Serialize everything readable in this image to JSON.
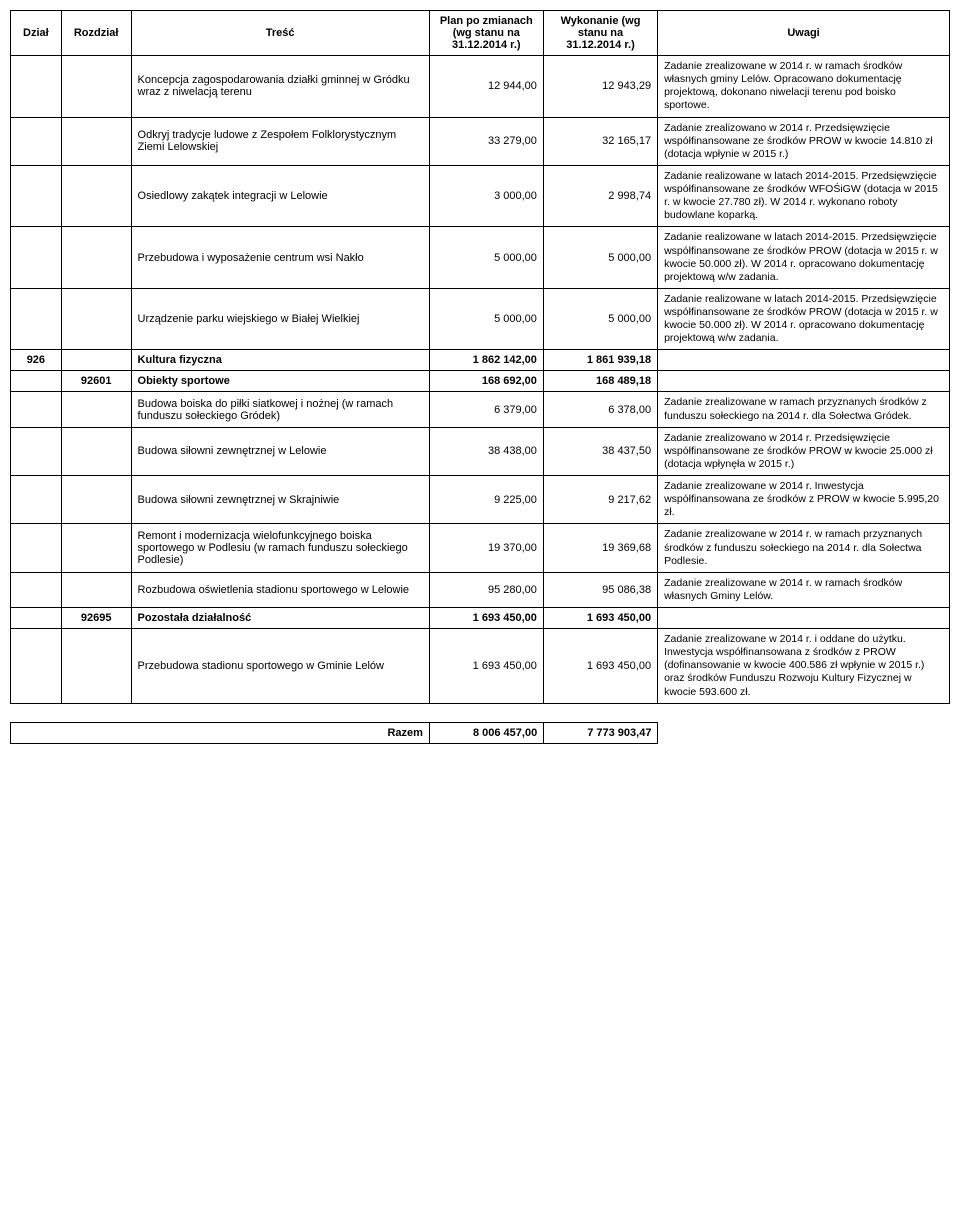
{
  "headers": {
    "dzial": "Dział",
    "rozdzial": "Rozdział",
    "tresc": "Treść",
    "plan": "Plan po zmianach (wg stanu na 31.12.2014 r.)",
    "wykonanie": "Wykonanie (wg stanu na 31.12.2014 r.)",
    "uwagi": "Uwagi"
  },
  "rows": [
    {
      "dzial": "",
      "rozdzial": "",
      "tresc": "Koncepcja zagospodarowania działki gminnej w Gródku wraz z niwelacją terenu",
      "plan": "12 944,00",
      "wyk": "12 943,29",
      "uwagi": "Zadanie zrealizowane w 2014 r. w ramach środków własnych gminy Lelów. Opracowano dokumentację projektową, dokonano niwelacji terenu pod boisko sportowe."
    },
    {
      "dzial": "",
      "rozdzial": "",
      "tresc": "Odkryj tradycje ludowe z Zespołem Folklorystycznym Ziemi Lelowskiej",
      "plan": "33 279,00",
      "wyk": "32 165,17",
      "uwagi": "Zadanie zrealizowano w 2014 r. Przedsięwzięcie współfinansowane ze środków PROW w kwocie 14.810 zł (dotacja wpłynie w 2015 r.)"
    },
    {
      "dzial": "",
      "rozdzial": "",
      "tresc": "Osiedlowy zakątek integracji w Lelowie",
      "plan": "3 000,00",
      "wyk": "2 998,74",
      "uwagi": "Zadanie realizowane  w latach 2014-2015. Przedsięwzięcie współfinansowane ze środków WFOŚiGW (dotacja w 2015 r. w kwocie 27.780 zł). W 2014 r. wykonano roboty budowlane koparką."
    },
    {
      "dzial": "",
      "rozdzial": "",
      "tresc": "Przebudowa i wyposażenie centrum wsi Nakło",
      "plan": "5 000,00",
      "wyk": "5 000,00",
      "uwagi": "Zadanie realizowane  w latach 2014-2015. Przedsięwzięcie współfinansowane ze środków PROW (dotacja w 2015 r. w kwocie 50.000 zł). W 2014 r. opracowano dokumentację projektową w/w zadania."
    },
    {
      "dzial": "",
      "rozdzial": "",
      "tresc": "Urządzenie parku wiejskiego w Białej Wielkiej",
      "plan": "5 000,00",
      "wyk": "5 000,00",
      "uwagi": "Zadanie realizowane  w latach 2014-2015. Przedsięwzięcie współfinansowane ze środków PROW (dotacja w 2015 r. w kwocie 50.000 zł). W 2014 r. opracowano dokumentację projektową w/w zadania."
    },
    {
      "dzial": "926",
      "rozdzial": "",
      "tresc": "Kultura fizyczna",
      "plan": "1 862 142,00",
      "wyk": "1 861 939,18",
      "uwagi": "",
      "bold": true
    },
    {
      "dzial": "",
      "rozdzial": "92601",
      "tresc": "Obiekty sportowe",
      "plan": "168 692,00",
      "wyk": "168 489,18",
      "uwagi": "",
      "bold": true
    },
    {
      "dzial": "",
      "rozdzial": "",
      "tresc": "Budowa boiska do piłki siatkowej i nożnej (w ramach funduszu sołeckiego Gródek)",
      "plan": "6 379,00",
      "wyk": "6 378,00",
      "uwagi": "Zadanie zrealizowane w ramach przyznanych środków z funduszu sołeckiego na 2014 r. dla Sołectwa Gródek."
    },
    {
      "dzial": "",
      "rozdzial": "",
      "tresc": "Budowa siłowni zewnętrznej w Lelowie",
      "plan": "38 438,00",
      "wyk": "38 437,50",
      "uwagi": "Zadanie zrealizowano w 2014 r. Przedsięwzięcie współfinansowane ze środków PROW w kwocie 25.000 zł (dotacja wpłynęła w 2015 r.)"
    },
    {
      "dzial": "",
      "rozdzial": "",
      "tresc": "Budowa siłowni zewnętrznej w Skrajniwie",
      "plan": "9 225,00",
      "wyk": "9 217,62",
      "uwagi": "Zadanie zrealizowane w 2014 r. Inwestycja współfinansowana ze środków z PROW w kwocie 5.995,20 zł."
    },
    {
      "dzial": "",
      "rozdzial": "",
      "tresc": "Remont i modernizacja wielofunkcyjnego boiska sportowego w Podlesiu (w ramach funduszu sołeckiego Podlesie)",
      "plan": "19 370,00",
      "wyk": "19 369,68",
      "uwagi": "Zadanie zrealizowane w 2014 r. w ramach przyznanych środków z funduszu sołeckiego na 2014 r. dla Sołectwa Podlesie."
    },
    {
      "dzial": "",
      "rozdzial": "",
      "tresc": "Rozbudowa oświetlenia stadionu sportowego w Lelowie",
      "plan": "95 280,00",
      "wyk": "95 086,38",
      "uwagi": "Zadanie zrealizowane w 2014 r. w ramach środków własnych Gminy Lelów."
    },
    {
      "dzial": "",
      "rozdzial": "92695",
      "tresc": "Pozostała działalność",
      "plan": "1 693 450,00",
      "wyk": "1 693 450,00",
      "uwagi": "",
      "bold": true
    },
    {
      "dzial": "",
      "rozdzial": "",
      "tresc": "Przebudowa stadionu sportowego w Gminie Lelów",
      "plan": "1 693 450,00",
      "wyk": "1 693 450,00",
      "uwagi": "Zadanie zrealizowane w 2014 r. i oddane do użytku. Inwestycja współfinansowana z środków z PROW (dofinansowanie w kwocie 400.586 zł wpłynie w 2015 r.) oraz środków Funduszu Rozwoju Kultury Fizycznej w kwocie 593.600 zł."
    }
  ],
  "razem": {
    "label": "Razem",
    "plan": "8 006 457,00",
    "wyk": "7 773 903,47"
  }
}
